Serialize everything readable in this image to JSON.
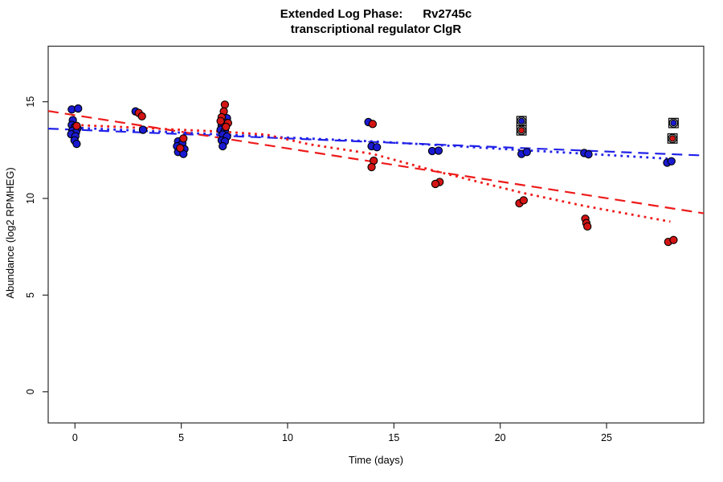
{
  "title": {
    "line1": "Extended Log Phase:      Rv2745c",
    "line2": "transcriptional regulator ClgR"
  },
  "chart_data": {
    "type": "scatter",
    "title": "Extended Log Phase: Rv2745c — transcriptional regulator ClgR",
    "xlabel": "Time  (days)",
    "ylabel": "Abundance  (log2 RPMHEG)",
    "x_ticks": [
      0,
      5,
      10,
      15,
      20,
      25
    ],
    "y_ticks": [
      0,
      5,
      10,
      15
    ],
    "xlim": [
      -1.26,
      29.57
    ],
    "ylim": [
      -1.61,
      17.87
    ],
    "grid": false,
    "legend": "none",
    "colors": {
      "blue_point": "#1a1ad2",
      "red_point": "#d41414",
      "blue_line": "#2121e8",
      "red_line": "#ee1a1a",
      "marker_outline": "#000000",
      "axis": "#2a2a2a"
    },
    "series": [
      {
        "name": "blue-samples",
        "color_key": "blue_point",
        "points": [
          [
            -0.15,
            14.6
          ],
          [
            0.15,
            14.65
          ],
          [
            -0.1,
            14.05
          ],
          [
            -0.15,
            13.8
          ],
          [
            0.0,
            13.7
          ],
          [
            0.12,
            13.62
          ],
          [
            -0.12,
            13.5
          ],
          [
            0.05,
            13.42
          ],
          [
            -0.18,
            13.32
          ],
          [
            0.02,
            13.22
          ],
          [
            -0.02,
            13.0
          ],
          [
            0.08,
            12.82
          ],
          [
            2.85,
            14.5
          ],
          [
            3.2,
            13.55
          ],
          [
            4.85,
            12.95
          ],
          [
            5.05,
            12.85
          ],
          [
            4.8,
            12.7
          ],
          [
            5.15,
            12.55
          ],
          [
            4.85,
            12.4
          ],
          [
            5.1,
            12.3
          ],
          [
            7.15,
            14.15
          ],
          [
            7.0,
            13.95
          ],
          [
            6.9,
            13.75
          ],
          [
            6.85,
            13.55
          ],
          [
            7.05,
            13.5
          ],
          [
            6.95,
            13.3
          ],
          [
            7.15,
            13.2
          ],
          [
            6.9,
            13.0
          ],
          [
            7.05,
            12.95
          ],
          [
            6.95,
            12.7
          ],
          [
            13.8,
            13.95
          ],
          [
            13.95,
            12.7
          ],
          [
            14.2,
            12.65
          ],
          [
            16.8,
            12.45
          ],
          [
            17.1,
            12.47
          ],
          [
            21.0,
            12.3
          ],
          [
            21.25,
            12.4
          ],
          [
            23.95,
            12.35
          ],
          [
            24.15,
            12.28
          ],
          [
            27.85,
            11.85
          ],
          [
            28.05,
            11.92
          ]
        ]
      },
      {
        "name": "red-samples",
        "color_key": "red_point",
        "points": [
          [
            0.08,
            13.75
          ],
          [
            3.0,
            14.42
          ],
          [
            3.15,
            14.25
          ],
          [
            5.1,
            13.1
          ],
          [
            4.95,
            12.6
          ],
          [
            7.05,
            14.85
          ],
          [
            7.0,
            14.5
          ],
          [
            6.9,
            14.2
          ],
          [
            6.85,
            14.0
          ],
          [
            7.2,
            13.9
          ],
          [
            7.1,
            13.7
          ],
          [
            14.0,
            13.85
          ],
          [
            14.05,
            11.95
          ],
          [
            13.95,
            11.62
          ],
          [
            17.15,
            10.85
          ],
          [
            16.95,
            10.75
          ],
          [
            20.9,
            9.75
          ],
          [
            21.1,
            9.9
          ],
          [
            24.0,
            8.95
          ],
          [
            24.05,
            8.72
          ],
          [
            24.1,
            8.55
          ],
          [
            27.9,
            7.75
          ],
          [
            28.15,
            7.85
          ]
        ]
      },
      {
        "name": "flagged-blue-samples",
        "color_key": "blue_point",
        "marker": "circle-square-flag",
        "points": [
          [
            21.0,
            14.0
          ],
          [
            28.15,
            13.9
          ]
        ]
      },
      {
        "name": "flagged-red-samples",
        "color_key": "red_point",
        "marker": "circle-square-flag",
        "points": [
          [
            21.0,
            13.52
          ],
          [
            28.1,
            13.1
          ]
        ]
      }
    ],
    "fits": [
      {
        "name": "blue-linear-fit",
        "style": "dashed",
        "color_key": "blue_line",
        "endpoints": [
          [
            -1.26,
            13.61
          ],
          [
            29.57,
            12.22
          ]
        ]
      },
      {
        "name": "red-linear-fit",
        "style": "dashed",
        "color_key": "red_line",
        "endpoints": [
          [
            -1.26,
            14.52
          ],
          [
            29.57,
            9.23
          ]
        ]
      },
      {
        "name": "blue-smooth-fit",
        "style": "dotted",
        "color_key": "blue_line",
        "path": [
          [
            0,
            13.65
          ],
          [
            3.5,
            13.48
          ],
          [
            7,
            13.3
          ],
          [
            10.5,
            13.12
          ],
          [
            14,
            12.95
          ],
          [
            17.5,
            12.73
          ],
          [
            21,
            12.5
          ],
          [
            24.5,
            12.28
          ],
          [
            28,
            12.05
          ]
        ]
      },
      {
        "name": "red-smooth-fit",
        "style": "dotted",
        "color_key": "red_line",
        "path": [
          [
            0,
            13.8
          ],
          [
            3,
            13.65
          ],
          [
            5,
            13.55
          ],
          [
            7,
            13.45
          ],
          [
            9,
            13.3
          ],
          [
            11,
            12.8
          ],
          [
            14,
            12.3
          ],
          [
            17,
            11.4
          ],
          [
            21,
            10.3
          ],
          [
            24,
            9.6
          ],
          [
            28,
            8.8
          ]
        ]
      }
    ]
  }
}
